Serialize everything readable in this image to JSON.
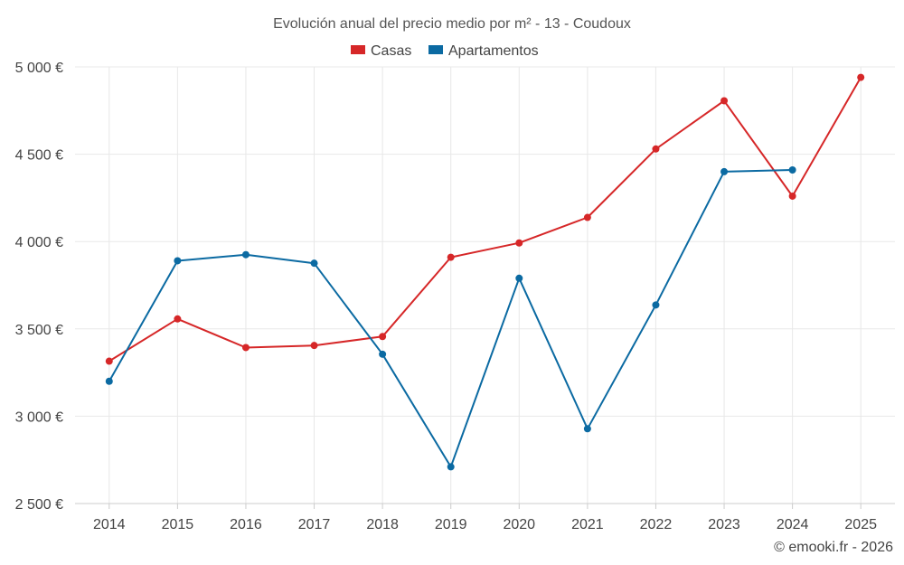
{
  "chart_data": {
    "type": "line",
    "title": "Evolución anual del precio medio por m² - 13 - Coudoux",
    "categories": [
      "2014",
      "2015",
      "2016",
      "2017",
      "2018",
      "2019",
      "2020",
      "2021",
      "2022",
      "2023",
      "2024",
      "2025"
    ],
    "series": [
      {
        "name": "Casas",
        "color": "#d62728",
        "values": [
          3315,
          3557,
          3393,
          3405,
          3456,
          3910,
          3992,
          4138,
          4530,
          4806,
          4260,
          4940
        ]
      },
      {
        "name": "Apartamentos",
        "color": "#0b6aa2",
        "values": [
          3200,
          3890,
          3925,
          3876,
          3355,
          2710,
          3790,
          2928,
          3637,
          4400,
          4410,
          null
        ]
      }
    ],
    "ylim": [
      2500,
      5000
    ],
    "yticks": [
      2500,
      3000,
      3500,
      4000,
      4500,
      5000
    ],
    "ytick_labels": [
      "2 500 €",
      "3 000 €",
      "3 500 €",
      "4 000 €",
      "4 500 €",
      "5 000 €"
    ],
    "xlabel": "",
    "ylabel": "",
    "legend_position": "top-center",
    "grid": true,
    "credit": "© emooki.fr - 2026"
  }
}
